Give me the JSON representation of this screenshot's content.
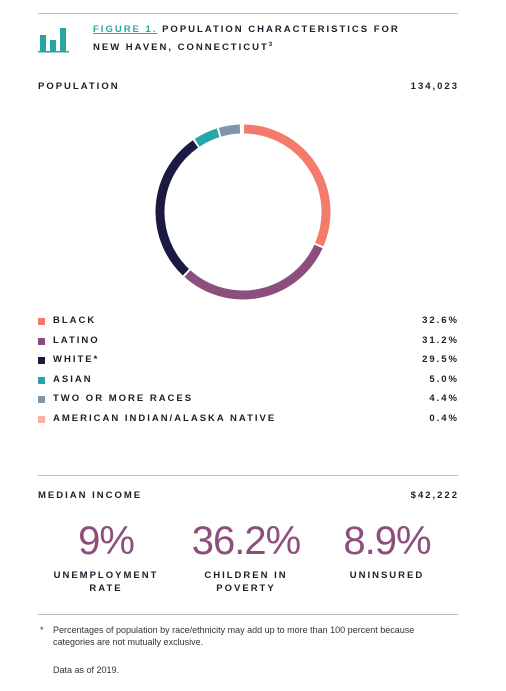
{
  "figure": {
    "label": "FIGURE 1.",
    "title_lines": [
      "POPULATION CHARACTERISTICS FOR",
      "NEW HAVEN, CONNECTICUT"
    ],
    "note": "3"
  },
  "population": {
    "label": "POPULATION",
    "value": "134,023"
  },
  "chart_data": {
    "type": "pie",
    "donut": true,
    "categories": [
      "BLACK",
      "LATINO",
      "WHITE*",
      "ASIAN",
      "TWO OR MORE RACES",
      "AMERICAN INDIAN/ALASKA NATIVE"
    ],
    "values": [
      32.6,
      31.2,
      29.5,
      5.0,
      4.4,
      0.4
    ],
    "value_labels": [
      "32.6%",
      "31.2%",
      "29.5%",
      "5.0%",
      "4.4%",
      "0.4%"
    ],
    "colors": [
      "#f47b6b",
      "#8c4f7d",
      "#1b1a40",
      "#27a6a9",
      "#7f95ac",
      "#f6b1a7"
    ]
  },
  "income": {
    "label": "MEDIAN INCOME",
    "value": "$42,222"
  },
  "stats": [
    {
      "value": "9%",
      "label_lines": [
        "UNEMPLOYMENT",
        "RATE"
      ]
    },
    {
      "value": "36.2%",
      "label_lines": [
        "CHILDREN IN",
        "POVERTY"
      ]
    },
    {
      "value": "8.9%",
      "label_lines": [
        "UNINSURED"
      ]
    }
  ],
  "footnote": {
    "mark": "*",
    "lines": [
      "Percentages of population by race/ethnicity may add up to more than 100 percent because",
      "categories are not mutually exclusive."
    ],
    "source": "Data as of 2019."
  }
}
